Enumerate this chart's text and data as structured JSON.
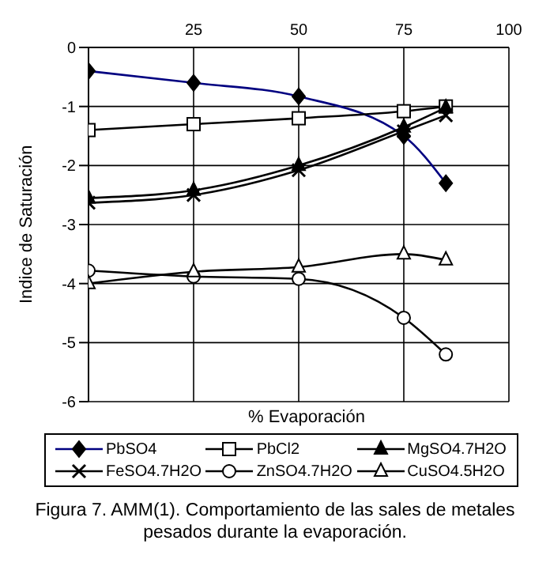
{
  "chart_data": {
    "type": "line",
    "xlabel": "% Evaporación",
    "ylabel": "Indice de Saturación",
    "x": [
      0,
      25,
      50,
      75,
      85
    ],
    "xlim": [
      0,
      100
    ],
    "xticks": [
      {
        "value": 0,
        "label": null
      },
      25,
      50,
      75,
      100
    ],
    "ylim": [
      -6,
      0
    ],
    "yticks": [
      -6,
      -5,
      -4,
      -3,
      -2,
      -1,
      0
    ],
    "grid": true,
    "legend": "bottom",
    "series": [
      {
        "name": "PbSO4",
        "color": "#000080",
        "marker": "diamond",
        "values": [
          -0.4,
          -0.6,
          -0.83,
          -1.5,
          -2.3
        ]
      },
      {
        "name": "PbCl2",
        "color": "#000000",
        "marker": "square",
        "values": [
          -1.4,
          -1.3,
          -1.2,
          -1.08,
          -1.0
        ]
      },
      {
        "name": "MgSO4.7H2O",
        "color": "#000000",
        "marker": "triangle",
        "values": [
          -2.55,
          -2.42,
          -2.0,
          -1.35,
          -1.02
        ]
      },
      {
        "name": "FeSO4.7H2O",
        "color": "#000000",
        "marker": "cross",
        "values": [
          -2.63,
          -2.5,
          -2.08,
          -1.42,
          -1.15
        ]
      },
      {
        "name": "ZnSO4.7H2O",
        "color": "#000000",
        "marker": "circle",
        "values": [
          -3.78,
          -3.88,
          -3.92,
          -4.58,
          -5.2
        ]
      },
      {
        "name": "CuSO4.5H2O",
        "color": "#000000",
        "marker": "triangle",
        "values": [
          -4.0,
          -3.8,
          -3.72,
          -3.5,
          -3.6
        ]
      }
    ],
    "annotations": [
      "Figura 7.  AMM(1).  Comportamiento de las sales de metales pesados durante la evaporación."
    ]
  }
}
